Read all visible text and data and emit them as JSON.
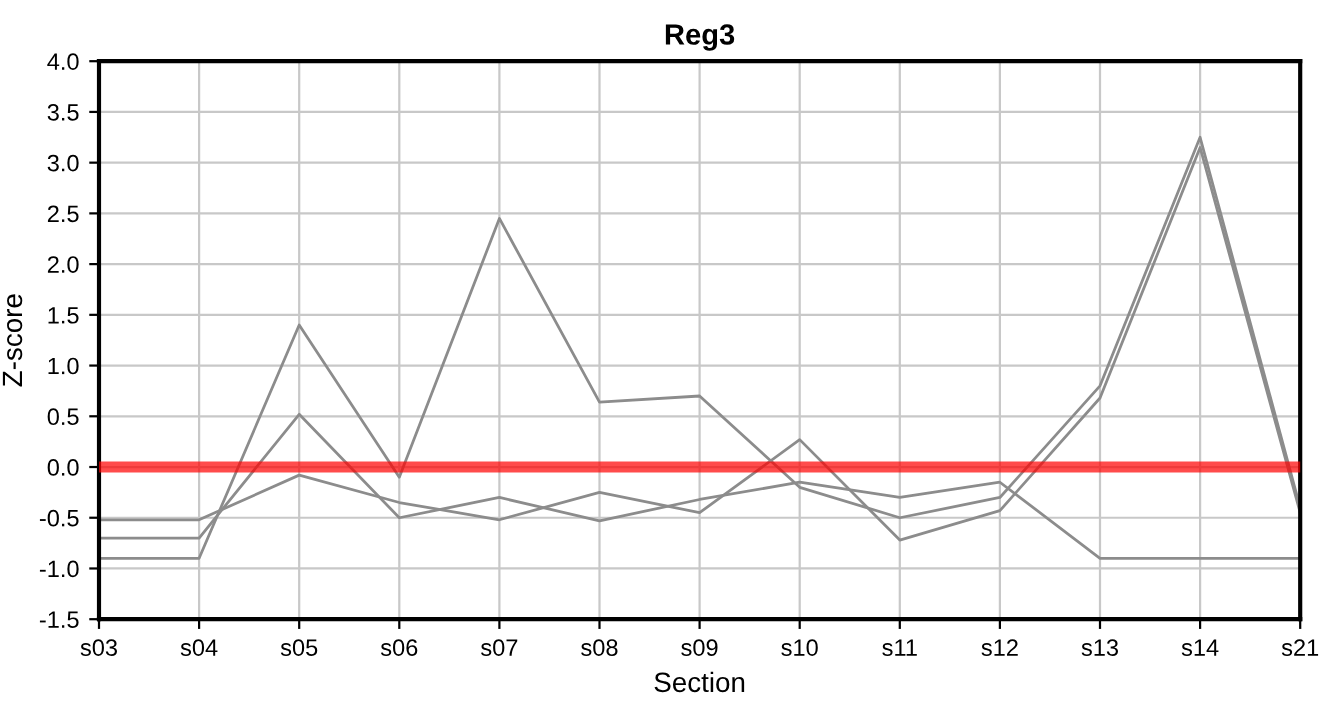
{
  "chart_data": {
    "type": "line",
    "title": "Reg3",
    "xlabel": "Section",
    "ylabel": "Z-score",
    "categories": [
      "s03",
      "s04",
      "s05",
      "s06",
      "s07",
      "s08",
      "s09",
      "s10",
      "s11",
      "s12",
      "s13",
      "s14",
      "s21"
    ],
    "series": [
      {
        "color": "#8c8c8c",
        "values": [
          -0.9,
          -0.9,
          1.4,
          -0.1,
          2.45,
          0.64,
          0.7,
          -0.2,
          -0.5,
          -0.3,
          0.8,
          3.25,
          -0.4
        ]
      },
      {
        "color": "#8c8c8c",
        "values": [
          -0.7,
          -0.7,
          0.52,
          -0.5,
          -0.3,
          -0.53,
          -0.32,
          -0.15,
          -0.3,
          -0.15,
          -0.9,
          -0.9,
          -0.9
        ]
      },
      {
        "color": "#8c8c8c",
        "values": [
          -0.52,
          -0.52,
          -0.08,
          -0.35,
          -0.52,
          -0.25,
          -0.45,
          0.27,
          -0.72,
          -0.43,
          0.68,
          3.15,
          -0.45
        ]
      }
    ],
    "ylim": [
      -1.5,
      4.0
    ],
    "yticks": [
      {
        "value": -1.5,
        "label": "-1.5"
      },
      {
        "value": -1.0,
        "label": "-1.0"
      },
      {
        "value": -0.5,
        "label": "-0.5"
      },
      {
        "value": 0,
        "label": "0.0"
      },
      {
        "value": 0.5,
        "label": "0.5"
      },
      {
        "value": 1.0,
        "label": "1.0"
      },
      {
        "value": 1.5,
        "label": "1.5"
      },
      {
        "value": 2.0,
        "label": "2.0"
      },
      {
        "value": 2.5,
        "label": "2.5"
      },
      {
        "value": 3.0,
        "label": "3.0"
      },
      {
        "value": 3.5,
        "label": "3.5"
      },
      {
        "value": 4.0,
        "label": "4.0"
      }
    ],
    "ref_lines": [
      {
        "axis": "y",
        "value": 0,
        "color": "#ff0000"
      }
    ],
    "grid": true,
    "legend": false,
    "marker": "none",
    "line_style": "solid"
  }
}
